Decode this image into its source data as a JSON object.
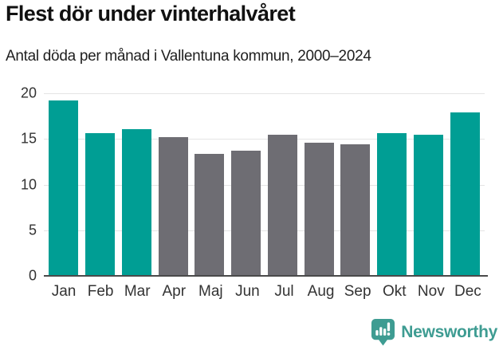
{
  "header": {
    "title": "Flest dör under vinterhalvåret",
    "subtitle": "Antal döda per månad i Vallentuna kommun, 2000–2024"
  },
  "chart_data": {
    "type": "bar",
    "title": "Flest dör under vinterhalvåret",
    "subtitle": "Antal döda per månad i Vallentuna kommun, 2000–2024",
    "categories": [
      "Jan",
      "Feb",
      "Mar",
      "Apr",
      "Maj",
      "Jun",
      "Jul",
      "Aug",
      "Sep",
      "Okt",
      "Nov",
      "Dec"
    ],
    "values": [
      19.2,
      15.6,
      16.1,
      15.2,
      13.4,
      13.7,
      15.5,
      14.6,
      14.4,
      15.6,
      15.5,
      17.9
    ],
    "groups": [
      "winter",
      "winter",
      "winter",
      "summer",
      "summer",
      "summer",
      "summer",
      "summer",
      "summer",
      "winter",
      "winter",
      "winter"
    ],
    "colors": {
      "winter": "#009e94",
      "summer": "#6e6d73"
    },
    "xlabel": "",
    "ylabel": "",
    "ylim": [
      0,
      20
    ],
    "yticks": [
      0,
      5,
      10,
      15,
      20
    ],
    "grid": true,
    "legend": "none"
  },
  "footer": {
    "brand": "Newsworthy",
    "brand_color": "#3e9c92",
    "logo_icon": "bar-chart-exclamation-bubble"
  }
}
